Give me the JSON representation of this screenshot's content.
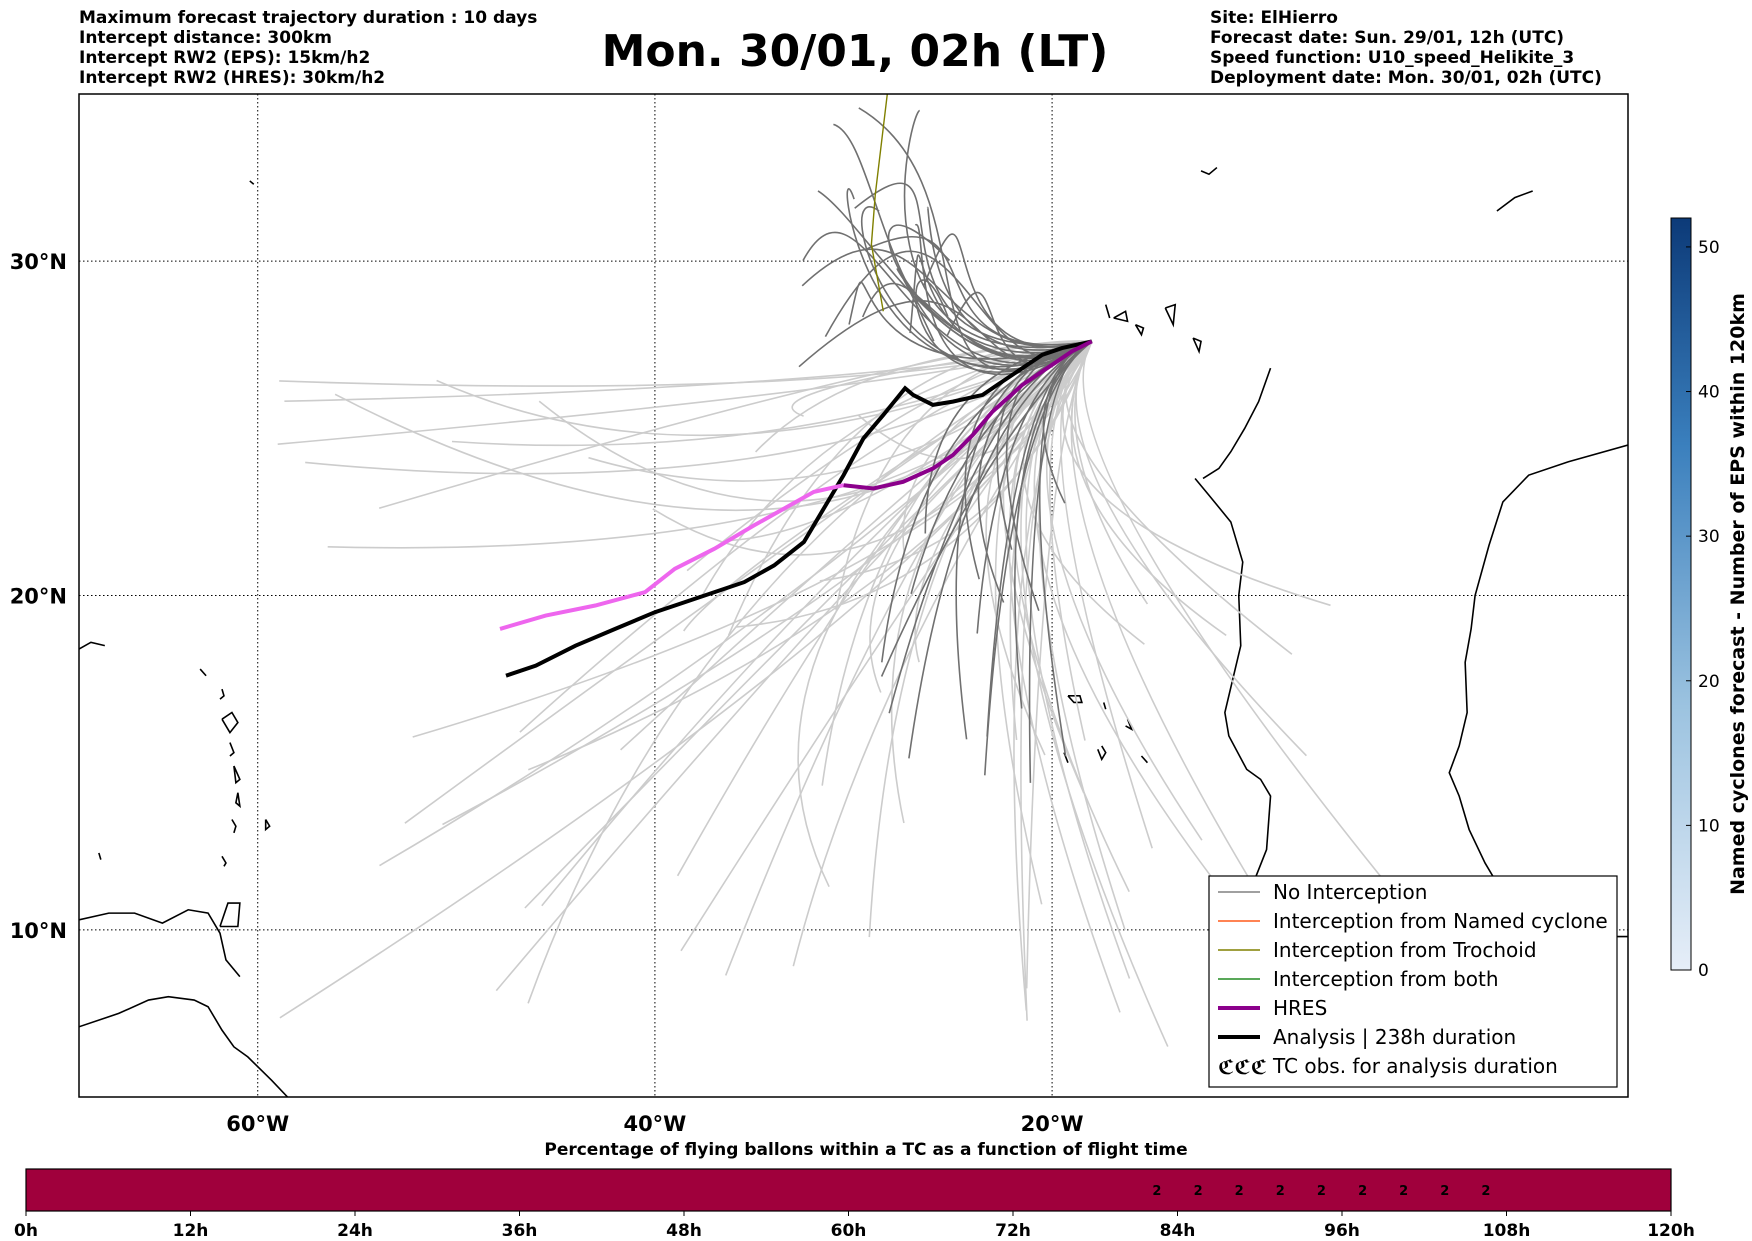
{
  "header": {
    "left_lines": [
      "Maximum forecast trajectory duration : 10 days",
      "Intercept distance: 300km",
      "Intercept RW2 (EPS):  15km/h2",
      "Intercept RW2 (HRES): 30km/h2"
    ],
    "right_lines": [
      "Site: ElHierro",
      "Forecast date: Sun. 29/01, 12h (UTC)",
      "Speed function: U10_speed_Helikite_3",
      "Deployment date: Mon. 30/01, 02h (UTC)"
    ],
    "title": "Mon. 30/01, 02h (LT)"
  },
  "chart_data": [
    {
      "type": "line",
      "map": true,
      "lon_range": [
        -69,
        9
      ],
      "lat_range": [
        5,
        35
      ],
      "grid": true,
      "lon_ticks": [
        -60,
        -40,
        -20
      ],
      "lon_tick_labels": [
        "60°W",
        "40°W",
        "20°W"
      ],
      "lat_ticks": [
        10,
        20,
        30
      ],
      "lat_tick_labels": [
        "10°N",
        "20°N",
        "30°N"
      ],
      "legend_position": "lower-right",
      "legend": [
        {
          "label": "No Interception",
          "color": "#808080",
          "style": "thin"
        },
        {
          "label": "Interception from Named cyclone",
          "color": "#ff5a1a",
          "style": "thin"
        },
        {
          "label": "Interception from Trochoid",
          "color": "#808000",
          "style": "thin"
        },
        {
          "label": "Interception from both",
          "color": "#228b22",
          "style": "thin"
        },
        {
          "label": "HRES",
          "color": "#8b008b",
          "style": "thick"
        },
        {
          "label": "Analysis | 238h duration",
          "color": "#000000",
          "style": "thick"
        },
        {
          "label": "TC obs. for analysis duration",
          "color": "#000000",
          "style": "symbol",
          "symbol": "ℭℭℭ"
        }
      ],
      "launch_site": {
        "lon": -18,
        "lat": 27.6
      },
      "series": [
        {
          "name": "Analysis | 238h duration",
          "color": "#000000",
          "points": [
            [
              -18.0,
              27.6
            ],
            [
              -19.5,
              27.4
            ],
            [
              -20.5,
              27.2
            ],
            [
              -21.5,
              26.8
            ],
            [
              -22.5,
              26.4
            ],
            [
              -23.5,
              26.0
            ],
            [
              -25.0,
              25.8
            ],
            [
              -26.0,
              25.7
            ],
            [
              -27.0,
              26.0
            ],
            [
              -27.4,
              26.2
            ],
            [
              -28.5,
              25.4
            ],
            [
              -29.5,
              24.7
            ],
            [
              -30.5,
              23.6
            ],
            [
              -31.5,
              22.6
            ],
            [
              -32.5,
              21.6
            ],
            [
              -34.0,
              20.9
            ],
            [
              -35.5,
              20.4
            ],
            [
              -37.5,
              20.0
            ],
            [
              -40.0,
              19.5
            ],
            [
              -42.0,
              19.0
            ],
            [
              -44.0,
              18.5
            ],
            [
              -46.0,
              17.9
            ],
            [
              -47.5,
              17.6
            ]
          ]
        },
        {
          "name": "HRES",
          "color": "#8b008b",
          "points": [
            [
              -18.0,
              27.6
            ],
            [
              -19.0,
              27.3
            ],
            [
              -20.0,
              26.9
            ],
            [
              -21.5,
              26.3
            ],
            [
              -23.0,
              25.5
            ],
            [
              -24.0,
              24.8
            ],
            [
              -25.0,
              24.2
            ],
            [
              -26.0,
              23.8
            ],
            [
              -27.5,
              23.4
            ],
            [
              -29.0,
              23.2
            ],
            [
              -30.5,
              23.3
            ],
            [
              -32.0,
              23.1
            ],
            [
              -33.5,
              22.6
            ],
            [
              -35.0,
              22.1
            ],
            [
              -37.0,
              21.4
            ],
            [
              -39.0,
              20.8
            ],
            [
              -40.5,
              20.1
            ],
            [
              -43.0,
              19.7
            ],
            [
              -45.5,
              19.4
            ],
            [
              -47.8,
              19.0
            ]
          ]
        }
      ]
    },
    {
      "type": "heatmap",
      "title": "Percentage of flying ballons within a TC as a function of flight time",
      "x_ticks": [
        "0h",
        "12h",
        "24h",
        "36h",
        "48h",
        "60h",
        "72h",
        "84h",
        "96h",
        "108h",
        "120h"
      ],
      "x_range_hours": [
        0,
        120
      ],
      "cell_hours": 3,
      "values": [
        0,
        0,
        0,
        0,
        0,
        0,
        0,
        0,
        0,
        0,
        0,
        0,
        0,
        0,
        0,
        0,
        0,
        0,
        0,
        0,
        0,
        0,
        0,
        0,
        0,
        0,
        0,
        2,
        2,
        2,
        2,
        2,
        2,
        2,
        2,
        2,
        0,
        0,
        0,
        0
      ],
      "labeled_cells_start_hour": 81,
      "label_color": "#000000",
      "cell_color": "#a0003c"
    },
    {
      "type": "colorbar",
      "label": "Named cyclones forecast - Number of EPS within 120km",
      "range": [
        0,
        52
      ],
      "ticks": [
        "0",
        "10",
        "20",
        "30",
        "40",
        "50"
      ],
      "color_low": "#e6eef8",
      "color_high": "#0c3a78"
    }
  ]
}
